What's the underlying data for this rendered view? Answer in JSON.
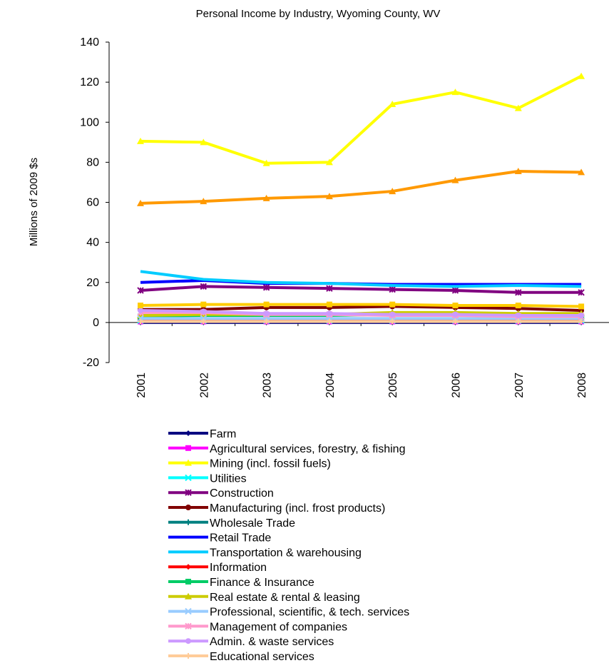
{
  "chart_data": {
    "type": "line",
    "title": "Personal Income by Industry, Wyoming County, WV",
    "xlabel": "",
    "ylabel": "Millions of 2009 $s",
    "ylim": [
      -20,
      140
    ],
    "yticks": [
      -20,
      0,
      20,
      40,
      60,
      80,
      100,
      120,
      140
    ],
    "grid": false,
    "legend_position": "bottom",
    "categories": [
      "2001",
      "2002",
      "2003",
      "2004",
      "2005",
      "2006",
      "2007",
      "2008"
    ],
    "series": [
      {
        "name": "Farm",
        "color": "#000080",
        "marker": "diamond",
        "values": [
          0,
          0,
          0,
          0,
          0,
          0,
          0,
          0
        ]
      },
      {
        "name": "Agricultural services, forestry, & fishing",
        "color": "#ff00ff",
        "marker": "square",
        "values": [
          0.5,
          0.5,
          0.5,
          0.5,
          0.5,
          0.5,
          0.5,
          0.5
        ]
      },
      {
        "name": "Mining (incl. fossil fuels)",
        "color": "#ffff00",
        "marker": "triangle",
        "values": [
          90.5,
          90,
          79.5,
          80,
          109,
          115,
          107,
          123
        ]
      },
      {
        "name": "Utilities",
        "color": "#00ffff",
        "marker": "x",
        "values": [
          1,
          1,
          1,
          1,
          1,
          1,
          1,
          1
        ]
      },
      {
        "name": "Construction",
        "color": "#800080",
        "marker": "star",
        "values": [
          16,
          18,
          17.5,
          17,
          16.5,
          16,
          15,
          15
        ]
      },
      {
        "name": "Manufacturing (incl. frost products)",
        "color": "#800000",
        "marker": "circle",
        "values": [
          6.5,
          6.5,
          7.5,
          7.5,
          8,
          7.5,
          7,
          6
        ]
      },
      {
        "name": "Wholesale Trade",
        "color": "#008080",
        "marker": "plus",
        "values": [
          1,
          1,
          1,
          1,
          1,
          1,
          1,
          1
        ]
      },
      {
        "name": "Retail Trade",
        "color": "#0000ff",
        "marker": "none",
        "values": [
          20,
          21,
          19.5,
          19.5,
          19,
          19,
          19,
          19
        ]
      },
      {
        "name": "Transportation & warehousing",
        "color": "#00ccff",
        "marker": "none",
        "values": [
          25.5,
          21.5,
          20,
          19.5,
          18.5,
          18,
          18.5,
          18
        ]
      },
      {
        "name": "Information",
        "color": "#ff0000",
        "marker": "diamond",
        "values": [
          1.5,
          1.5,
          1.5,
          1.5,
          1.5,
          1.5,
          1.5,
          1.5
        ]
      },
      {
        "name": "Finance & Insurance",
        "color": "#00cc66",
        "marker": "square",
        "values": [
          3,
          3.5,
          3.5,
          3.5,
          4,
          4,
          3.5,
          3
        ]
      },
      {
        "name": "Real estate & rental & leasing",
        "color": "#cccc00",
        "marker": "triangle",
        "values": [
          3.5,
          4,
          4,
          4,
          5,
          5,
          4.5,
          4.5
        ]
      },
      {
        "name": "Professional, scientific, & tech. services",
        "color": "#99ccff",
        "marker": "x",
        "values": [
          2,
          2,
          2,
          2,
          2,
          2,
          2,
          2
        ]
      },
      {
        "name": "Management of companies",
        "color": "#ff99cc",
        "marker": "star",
        "values": [
          5,
          5,
          4,
          4,
          3.5,
          3.5,
          3,
          3
        ]
      },
      {
        "name": "Admin. & waste services",
        "color": "#cc99ff",
        "marker": "circle",
        "values": [
          6,
          5.5,
          4.5,
          4.5,
          4,
          4,
          3.5,
          3.5
        ]
      },
      {
        "name": "Educational services",
        "color": "#ffcc99",
        "marker": "plus",
        "values": [
          0.5,
          0.5,
          0.5,
          0.5,
          0.5,
          0.5,
          0.5,
          0.5
        ]
      },
      {
        "name": "",
        "color": "#ff9900",
        "marker": "triangle",
        "values": [
          59.5,
          60.5,
          62,
          63,
          65.5,
          71,
          75.5,
          75
        ]
      },
      {
        "name": "",
        "color": "#ffcc00",
        "marker": "square",
        "values": [
          8.5,
          9,
          9,
          9,
          9,
          8.5,
          8.5,
          8
        ]
      }
    ]
  }
}
